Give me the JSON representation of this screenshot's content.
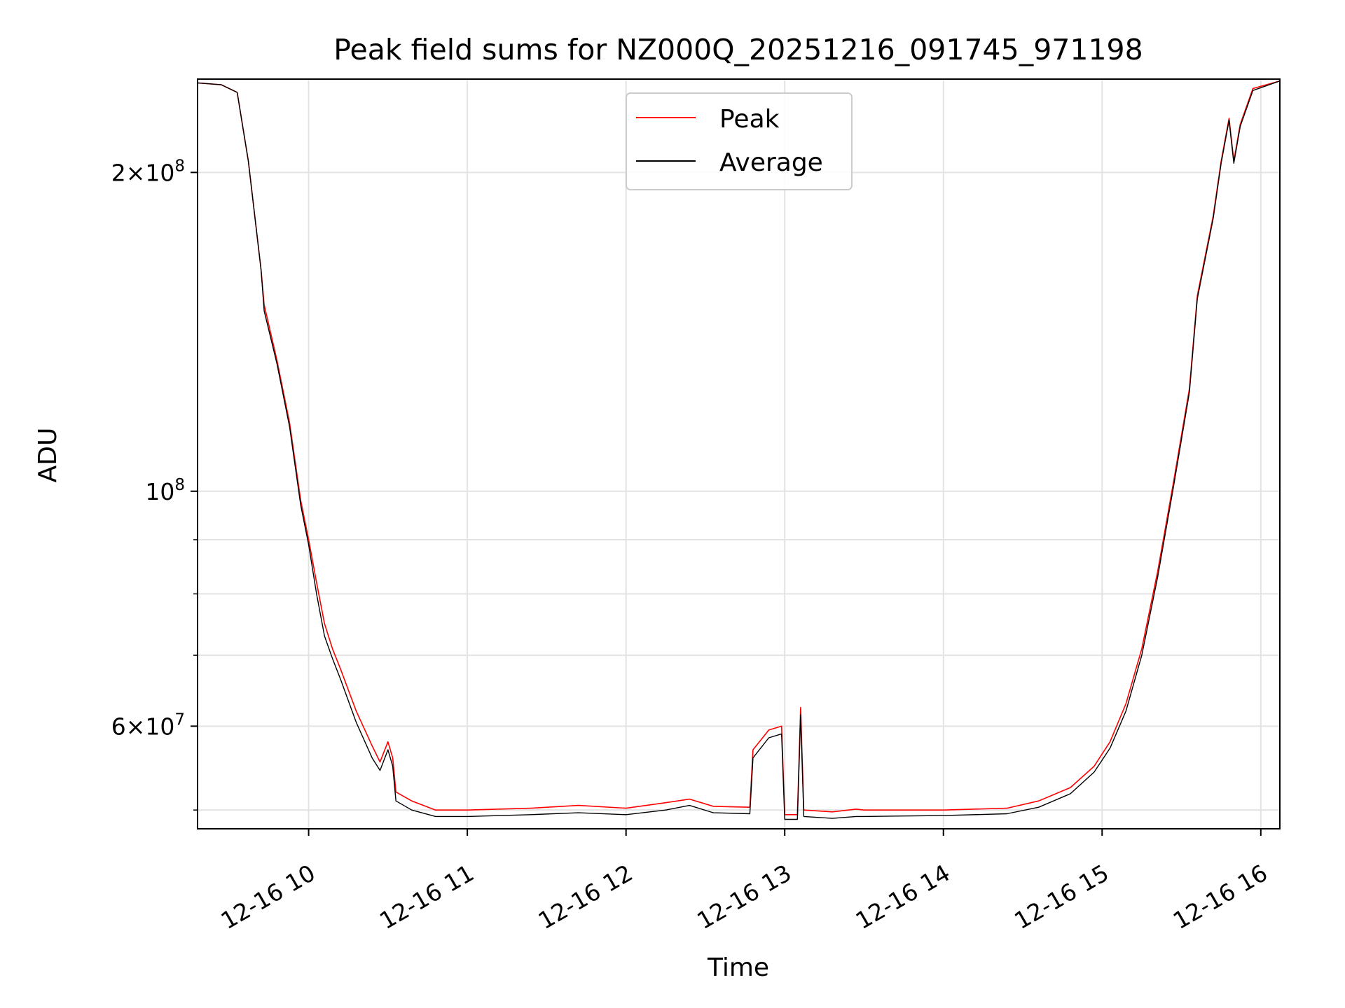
{
  "chart_data": {
    "type": "line",
    "title": "Peak field sums for NZ000Q_20251216_091745_971198",
    "xlabel": "Time",
    "ylabel": "ADU",
    "yscale": "log",
    "xlim": [
      9.3,
      16.12
    ],
    "ylim": [
      48000000,
      245000000
    ],
    "grid": true,
    "legend_position": "top-center",
    "x_ticks": [
      {
        "value": 10,
        "label": "12-16 10"
      },
      {
        "value": 11,
        "label": "12-16 11"
      },
      {
        "value": 12,
        "label": "12-16 12"
      },
      {
        "value": 13,
        "label": "12-16 13"
      },
      {
        "value": 14,
        "label": "12-16 14"
      },
      {
        "value": 15,
        "label": "12-16 15"
      },
      {
        "value": 16,
        "label": "12-16 16"
      }
    ],
    "y_ticks_major": [
      {
        "value": 200000000,
        "mantissa": "2",
        "exponent": "8"
      },
      {
        "value": 100000000,
        "mantissa": "",
        "exponent": "8"
      },
      {
        "value": 60000000,
        "mantissa": "6",
        "exponent": "7"
      }
    ],
    "y_ticks_minor": [
      50000000,
      70000000,
      80000000,
      90000000
    ],
    "series": [
      {
        "name": "Peak",
        "color": "#ff0000",
        "points": [
          [
            9.3,
            243000000
          ],
          [
            9.45,
            242000000
          ],
          [
            9.55,
            238000000
          ],
          [
            9.62,
            205000000
          ],
          [
            9.7,
            162000000
          ],
          [
            9.72,
            150000000
          ],
          [
            9.8,
            133000000
          ],
          [
            9.88,
            116000000
          ],
          [
            9.95,
            98000000
          ],
          [
            10.0,
            90000000
          ],
          [
            10.05,
            82000000
          ],
          [
            10.1,
            75000000
          ],
          [
            10.15,
            71000000
          ],
          [
            10.2,
            68000000
          ],
          [
            10.3,
            62000000
          ],
          [
            10.4,
            57500000
          ],
          [
            10.45,
            55500000
          ],
          [
            10.5,
            58000000
          ],
          [
            10.53,
            56000000
          ],
          [
            10.55,
            52000000
          ],
          [
            10.65,
            51000000
          ],
          [
            10.8,
            50000000
          ],
          [
            11.0,
            50000000
          ],
          [
            11.4,
            50200000
          ],
          [
            11.7,
            50500000
          ],
          [
            12.0,
            50200000
          ],
          [
            12.25,
            50800000
          ],
          [
            12.4,
            51200000
          ],
          [
            12.55,
            50400000
          ],
          [
            12.78,
            50300000
          ],
          [
            12.8,
            57000000
          ],
          [
            12.9,
            59500000
          ],
          [
            12.98,
            60000000
          ],
          [
            13.0,
            49500000
          ],
          [
            13.08,
            49500000
          ],
          [
            13.1,
            62500000
          ],
          [
            13.12,
            50000000
          ],
          [
            13.3,
            49800000
          ],
          [
            13.45,
            50100000
          ],
          [
            13.5,
            50000000
          ],
          [
            14.0,
            50000000
          ],
          [
            14.4,
            50200000
          ],
          [
            14.6,
            51000000
          ],
          [
            14.8,
            52500000
          ],
          [
            14.95,
            55000000
          ],
          [
            15.05,
            58000000
          ],
          [
            15.15,
            63000000
          ],
          [
            15.25,
            71000000
          ],
          [
            15.35,
            84000000
          ],
          [
            15.45,
            102000000
          ],
          [
            15.55,
            125000000
          ],
          [
            15.6,
            153000000
          ],
          [
            15.7,
            182000000
          ],
          [
            15.75,
            205000000
          ],
          [
            15.8,
            225000000
          ],
          [
            15.83,
            205000000
          ],
          [
            15.87,
            222000000
          ],
          [
            15.95,
            240000000
          ],
          [
            16.12,
            244000000
          ]
        ]
      },
      {
        "name": "Average",
        "color": "#000000",
        "points": [
          [
            9.3,
            243000000
          ],
          [
            9.45,
            242000000
          ],
          [
            9.55,
            238000000
          ],
          [
            9.62,
            205000000
          ],
          [
            9.7,
            162000000
          ],
          [
            9.72,
            148000000
          ],
          [
            9.8,
            132000000
          ],
          [
            9.88,
            115000000
          ],
          [
            9.95,
            97000000
          ],
          [
            10.0,
            89000000
          ],
          [
            10.05,
            80000000
          ],
          [
            10.1,
            73000000
          ],
          [
            10.15,
            69500000
          ],
          [
            10.2,
            66500000
          ],
          [
            10.3,
            60500000
          ],
          [
            10.4,
            56000000
          ],
          [
            10.45,
            54500000
          ],
          [
            10.5,
            57000000
          ],
          [
            10.53,
            55000000
          ],
          [
            10.55,
            51000000
          ],
          [
            10.65,
            50000000
          ],
          [
            10.8,
            49300000
          ],
          [
            11.0,
            49300000
          ],
          [
            11.4,
            49500000
          ],
          [
            11.7,
            49700000
          ],
          [
            12.0,
            49500000
          ],
          [
            12.25,
            50000000
          ],
          [
            12.4,
            50500000
          ],
          [
            12.55,
            49700000
          ],
          [
            12.78,
            49600000
          ],
          [
            12.8,
            56000000
          ],
          [
            12.9,
            58500000
          ],
          [
            12.98,
            59000000
          ],
          [
            13.0,
            49000000
          ],
          [
            13.08,
            49000000
          ],
          [
            13.1,
            61500000
          ],
          [
            13.12,
            49300000
          ],
          [
            13.3,
            49100000
          ],
          [
            13.45,
            49300000
          ],
          [
            13.5,
            49300000
          ],
          [
            14.0,
            49400000
          ],
          [
            14.4,
            49600000
          ],
          [
            14.6,
            50300000
          ],
          [
            14.8,
            51800000
          ],
          [
            14.95,
            54300000
          ],
          [
            15.05,
            57200000
          ],
          [
            15.15,
            62000000
          ],
          [
            15.25,
            70000000
          ],
          [
            15.35,
            83000000
          ],
          [
            15.45,
            101000000
          ],
          [
            15.55,
            124000000
          ],
          [
            15.6,
            152000000
          ],
          [
            15.7,
            181000000
          ],
          [
            15.75,
            204000000
          ],
          [
            15.8,
            224000000
          ],
          [
            15.83,
            204000000
          ],
          [
            15.87,
            221000000
          ],
          [
            15.95,
            239000000
          ],
          [
            16.12,
            244000000
          ]
        ]
      }
    ]
  }
}
